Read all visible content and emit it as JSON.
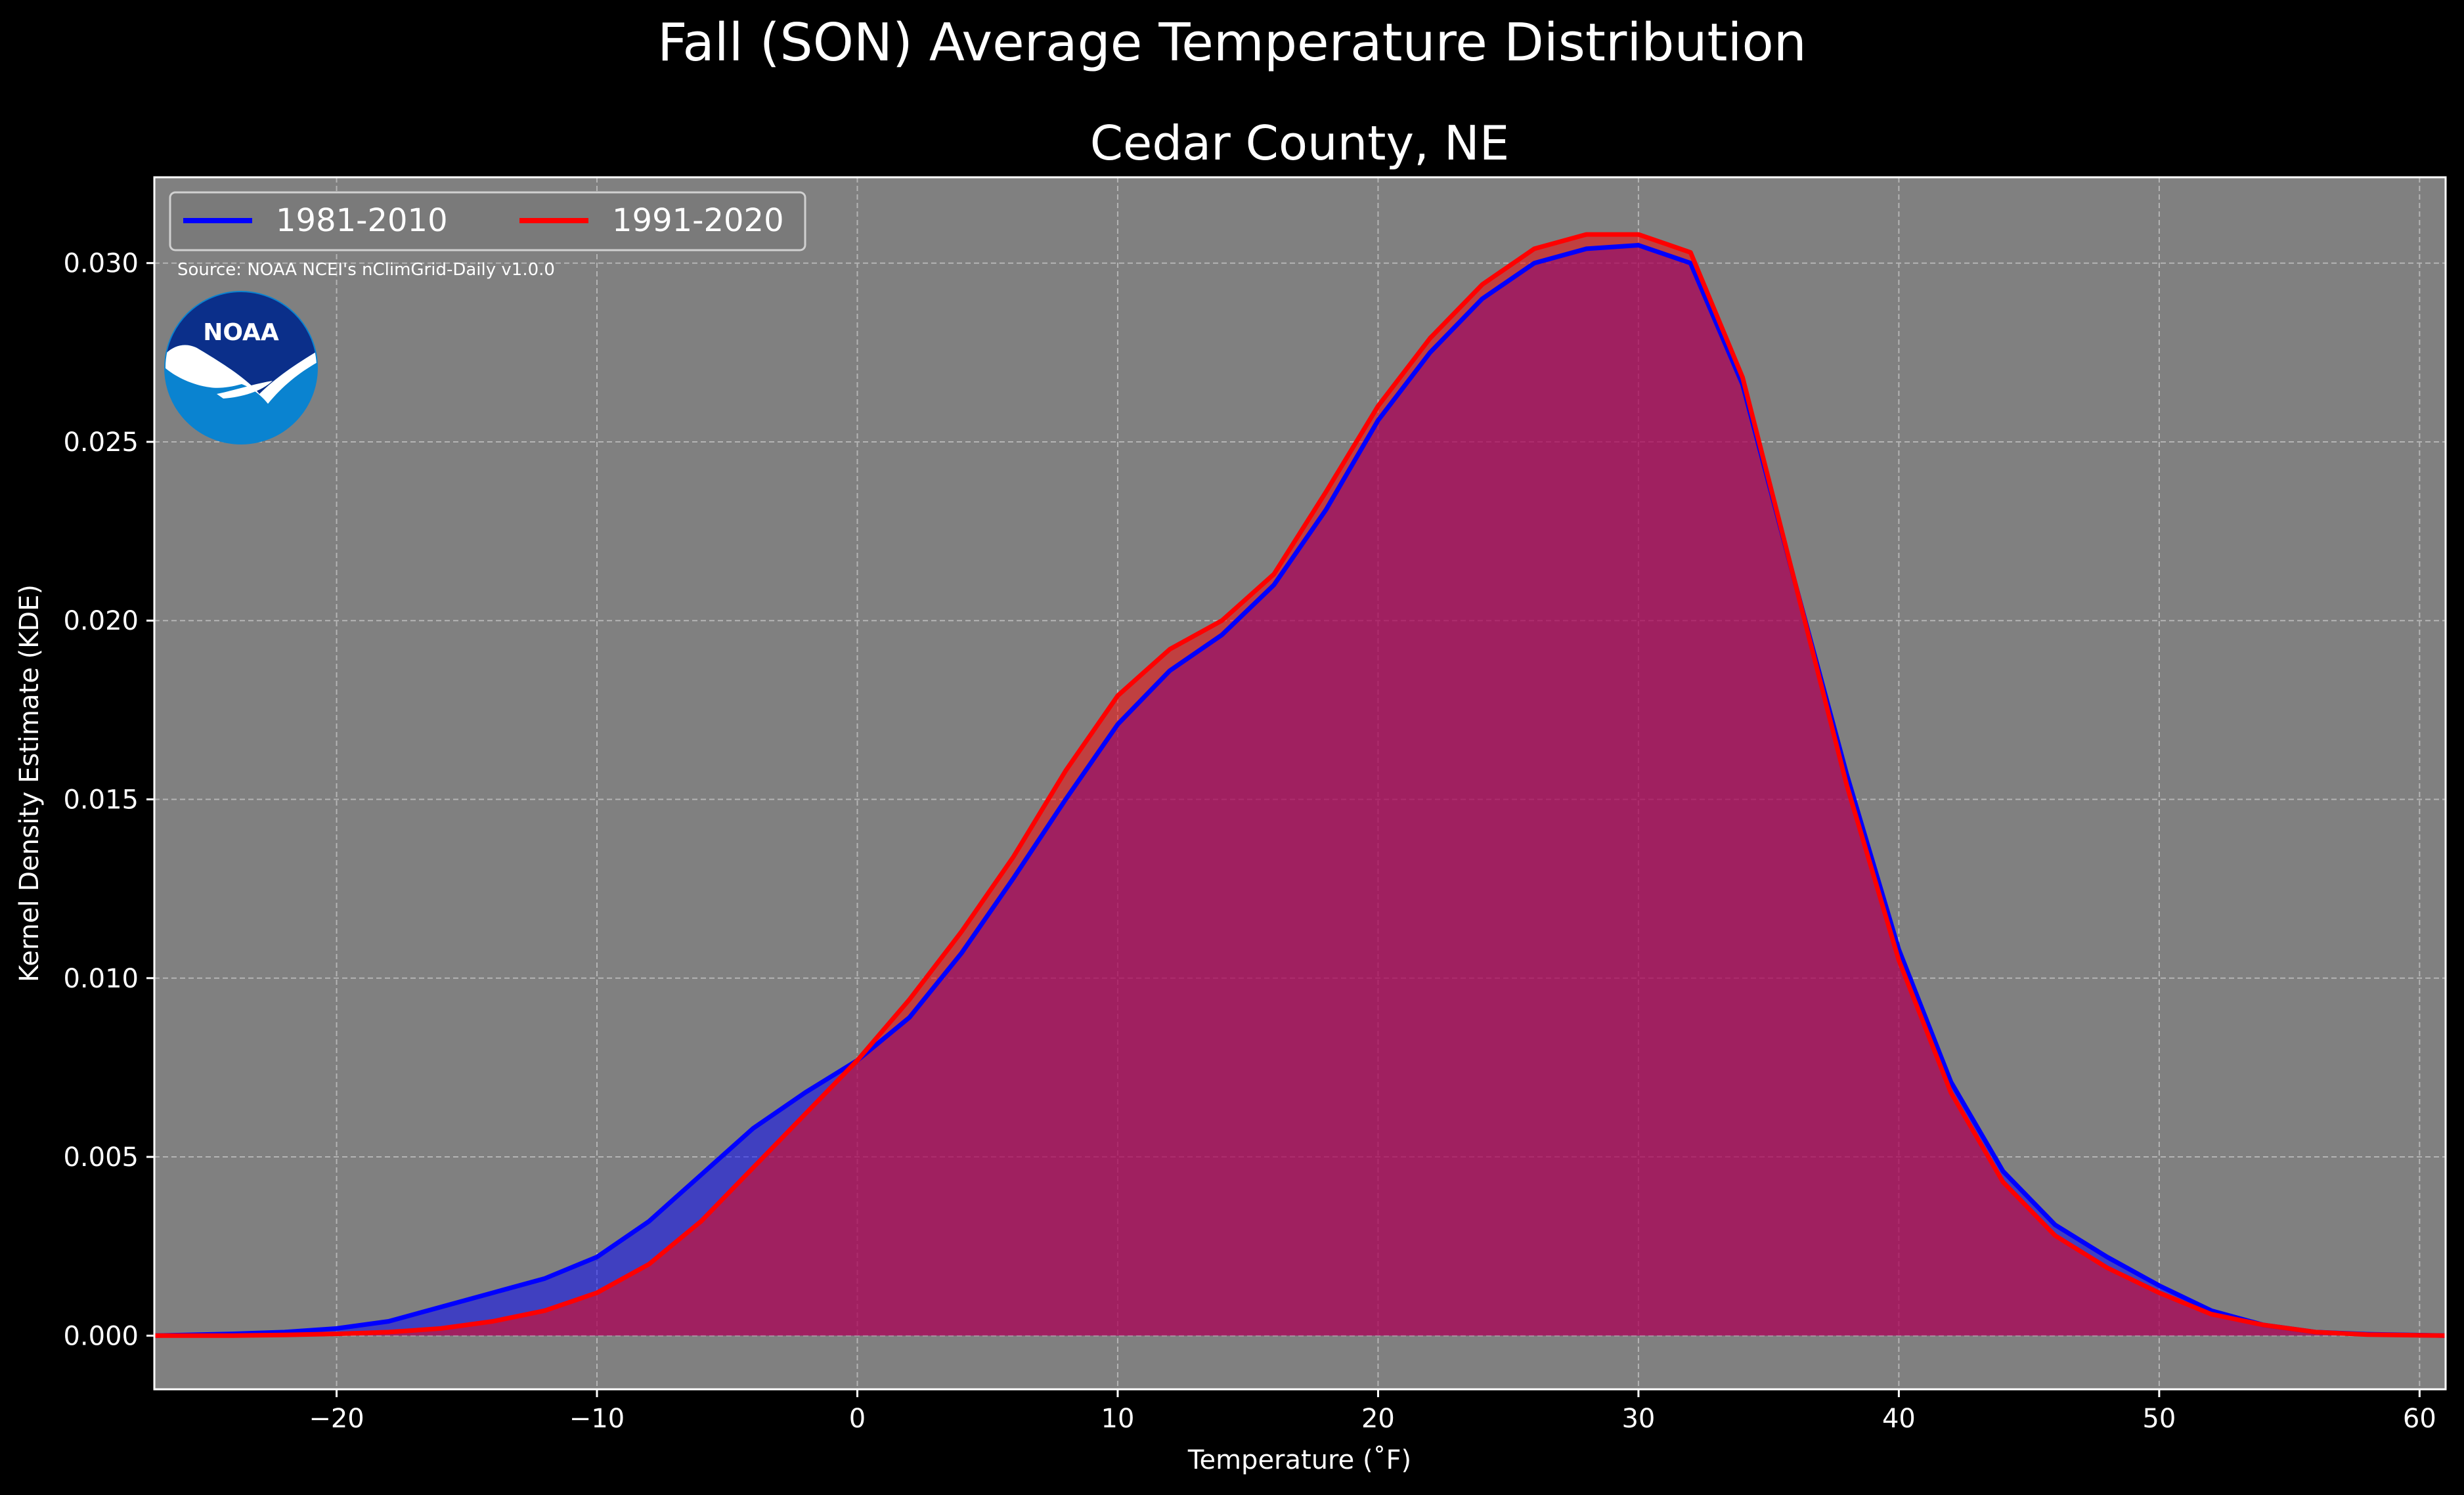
{
  "figure": {
    "title": "Fall (SON) Average Temperature Distribution",
    "subtitle": "Cedar County, NE",
    "source_note": "Source: NOAA NCEI's nClimGrid-Daily v1.0.0",
    "logo_text": "NOAA"
  },
  "colors": {
    "background": "#000000",
    "plot_background": "#808080",
    "grid": "#b4b4b4",
    "series_1981_2010": "#0000ff",
    "series_1991_2020": "#ff0000",
    "logo_dark_blue": "#0b2f8a",
    "logo_light_blue": "#0a83d0"
  },
  "chart_data": {
    "type": "area",
    "title": "Fall (SON) Average Temperature Distribution",
    "subtitle": "Cedar County, NE",
    "xlabel": "Temperature ($^\\circ$F)",
    "xlabel_display": "Temperature (˚F)",
    "ylabel": "Kernel Density Estimate (KDE)",
    "xlim": [
      -27,
      61
    ],
    "ylim": [
      -0.0015,
      0.0324
    ],
    "xticks": [
      -20,
      -10,
      0,
      10,
      20,
      30,
      40,
      50,
      60
    ],
    "xtick_labels": [
      "−20",
      "−10",
      "0",
      "10",
      "20",
      "30",
      "40",
      "50",
      "60"
    ],
    "yticks": [
      0.0,
      0.005,
      0.01,
      0.015,
      0.02,
      0.025,
      0.03
    ],
    "ytick_labels": [
      "0.000",
      "0.005",
      "0.010",
      "0.015",
      "0.020",
      "0.025",
      "0.030"
    ],
    "grid": true,
    "legend_position": "top-left",
    "series": [
      {
        "name": "1981-2010",
        "color": "#0000ff",
        "x": [
          -27,
          -24,
          -22,
          -20,
          -18,
          -16,
          -14,
          -12,
          -10,
          -8,
          -6,
          -4,
          -2,
          0,
          2,
          4,
          6,
          8,
          10,
          12,
          14,
          16,
          18,
          20,
          22,
          24,
          26,
          28,
          30,
          32,
          34,
          36,
          38,
          40,
          42,
          44,
          46,
          48,
          50,
          52,
          54,
          56,
          58,
          61
        ],
        "values": [
          0.0,
          5e-05,
          0.0001,
          0.0002,
          0.0004,
          0.0008,
          0.0012,
          0.0016,
          0.0022,
          0.0032,
          0.0045,
          0.0058,
          0.0068,
          0.0077,
          0.0089,
          0.0107,
          0.0128,
          0.015,
          0.0171,
          0.0186,
          0.0196,
          0.021,
          0.0231,
          0.0256,
          0.0275,
          0.029,
          0.03,
          0.0304,
          0.0305,
          0.03,
          0.0266,
          0.0211,
          0.0157,
          0.0108,
          0.0071,
          0.0046,
          0.0031,
          0.0022,
          0.0014,
          0.0007,
          0.0003,
          0.0001,
          4e-05,
          0.0
        ]
      },
      {
        "name": "1991-2020",
        "color": "#ff0000",
        "x": [
          -27,
          -24,
          -22,
          -20,
          -18,
          -16,
          -14,
          -12,
          -10,
          -8,
          -6,
          -4,
          -2,
          0,
          2,
          4,
          6,
          8,
          10,
          12,
          14,
          16,
          18,
          20,
          22,
          24,
          26,
          28,
          30,
          32,
          34,
          36,
          38,
          40,
          42,
          44,
          46,
          48,
          50,
          52,
          54,
          56,
          58,
          61
        ],
        "values": [
          0.0,
          0.0,
          2e-05,
          5e-05,
          0.0001,
          0.0002,
          0.0004,
          0.0007,
          0.0012,
          0.002,
          0.0032,
          0.0047,
          0.0062,
          0.0077,
          0.0094,
          0.0113,
          0.0134,
          0.0158,
          0.0179,
          0.0192,
          0.02,
          0.0213,
          0.0236,
          0.026,
          0.0279,
          0.0294,
          0.0304,
          0.0308,
          0.0308,
          0.0303,
          0.0268,
          0.0211,
          0.0154,
          0.0105,
          0.0068,
          0.0043,
          0.0028,
          0.0019,
          0.0012,
          0.0006,
          0.0003,
          0.0001,
          3e-05,
          0.0
        ]
      }
    ]
  }
}
